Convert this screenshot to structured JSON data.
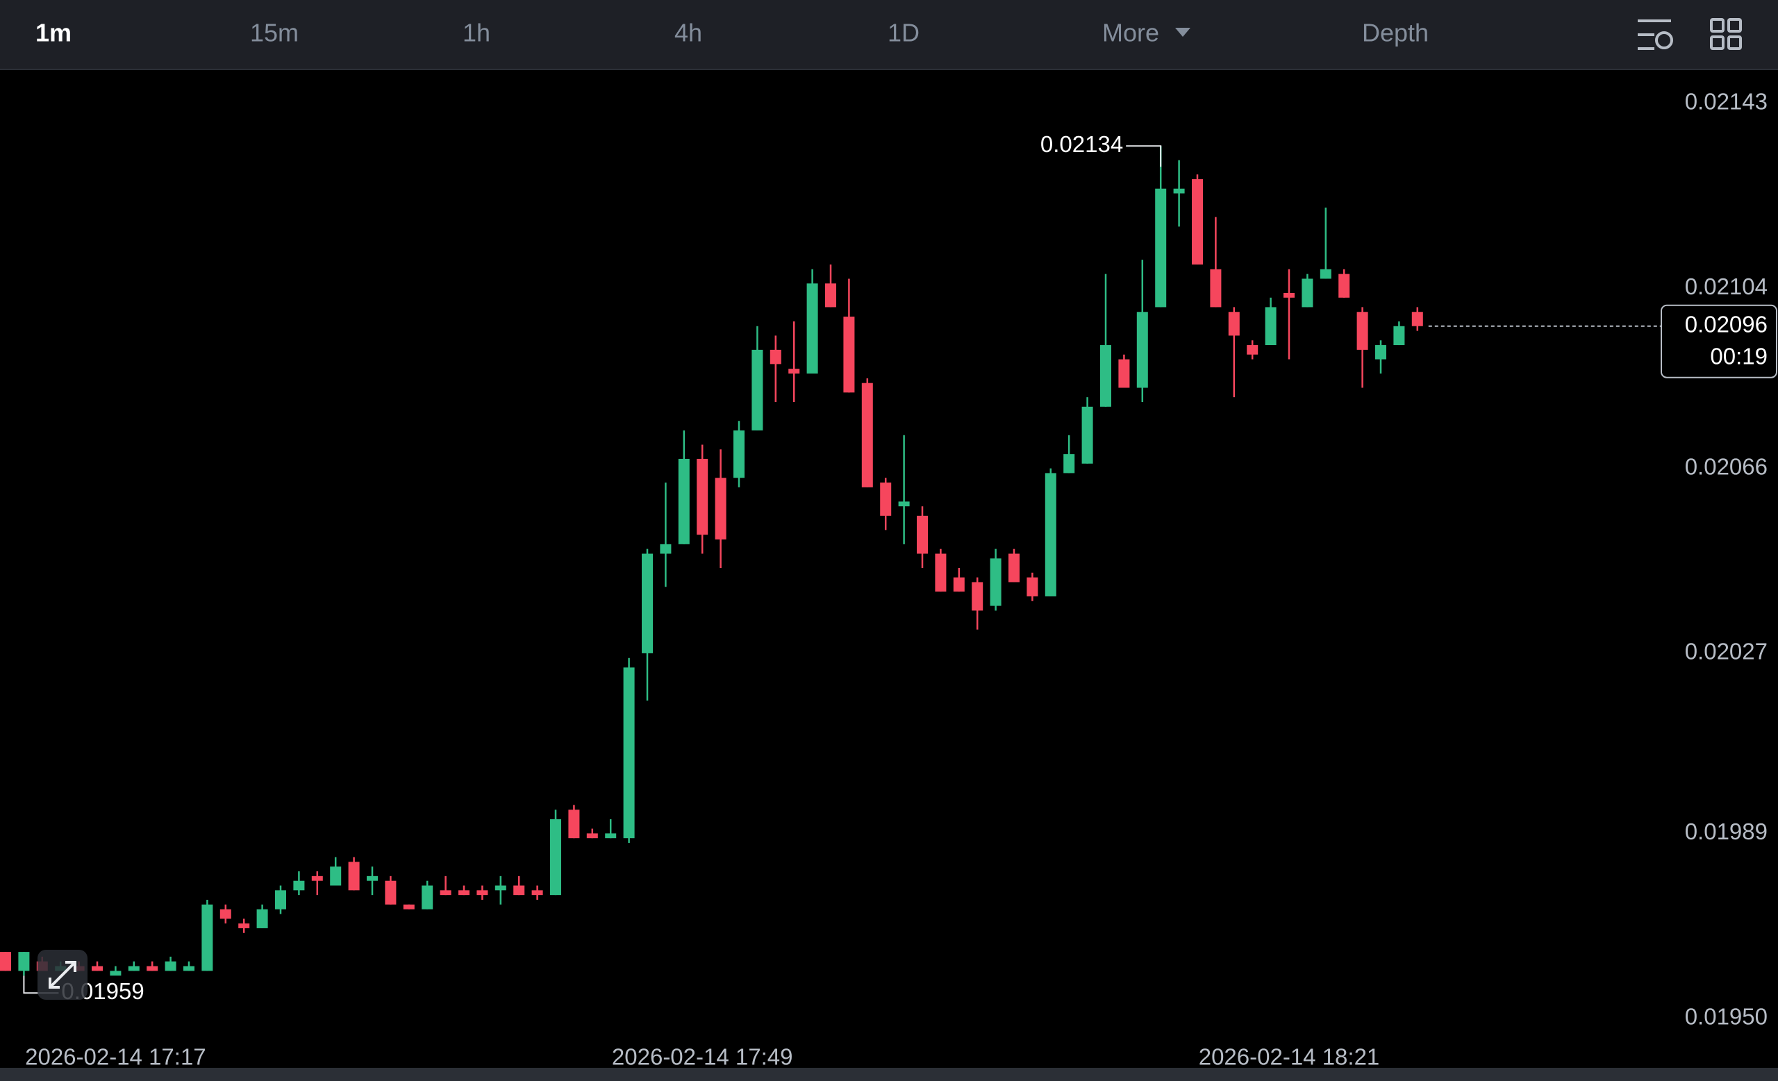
{
  "toolbar": {
    "tabs": [
      "1m",
      "15m",
      "1h",
      "4h",
      "1D",
      "More",
      "Depth"
    ],
    "active_tab": 0
  },
  "chart_data": {
    "type": "candlestick",
    "categories": [
      null,
      null,
      null,
      null,
      null,
      null,
      "2026-02-14 17:17",
      null,
      null,
      null,
      null,
      null,
      null,
      null,
      null,
      null,
      null,
      null,
      null,
      null,
      null,
      null,
      null,
      null,
      null,
      null,
      null,
      null,
      null,
      null,
      null,
      null,
      null,
      null,
      null,
      null,
      null,
      null,
      "2026-02-14 17:49",
      null,
      null,
      null,
      null,
      null,
      null,
      null,
      null,
      null,
      null,
      null,
      null,
      null,
      null,
      null,
      null,
      null,
      null,
      null,
      null,
      null,
      null,
      null,
      null,
      null,
      null,
      null,
      null,
      null,
      null,
      null,
      "2026-02-14 18:21",
      null,
      null,
      null,
      null,
      null,
      null,
      null
    ],
    "open": [
      0.01964,
      0.0196,
      0.01962,
      0.0196,
      0.01961,
      0.01961,
      0.01959,
      0.0196,
      0.01961,
      0.0196,
      0.0196,
      0.0196,
      0.01973,
      0.0197,
      0.01969,
      0.01973,
      0.01977,
      0.0198,
      0.01978,
      0.01983,
      0.01979,
      0.01979,
      0.01974,
      0.01973,
      0.01977,
      0.01977,
      0.01977,
      0.01977,
      0.01978,
      0.01977,
      0.01976,
      0.01994,
      0.01989,
      0.01988,
      0.01988,
      0.02027,
      0.02048,
      0.0205,
      0.02068,
      0.02064,
      0.02064,
      0.02074,
      0.02091,
      0.02087,
      0.02086,
      0.02105,
      0.02098,
      0.02084,
      0.02063,
      0.02058,
      0.02056,
      0.02048,
      0.02043,
      0.02042,
      0.02037,
      0.02048,
      0.02043,
      0.02039,
      0.02065,
      0.02067,
      0.02079,
      0.02089,
      0.02083,
      0.021,
      0.02124,
      0.02127,
      0.02108,
      0.02099,
      0.02092,
      0.02092,
      0.02103,
      0.021,
      0.02106,
      0.02107,
      0.02099,
      0.02089,
      0.02092,
      0.02099
    ],
    "high": [
      0.01964,
      0.01964,
      0.01963,
      0.01962,
      0.01962,
      0.01962,
      0.01961,
      0.01962,
      0.01962,
      0.01963,
      0.01962,
      0.01975,
      0.01974,
      0.01971,
      0.01974,
      0.01978,
      0.01981,
      0.01981,
      0.01984,
      0.01984,
      0.01982,
      0.0198,
      0.01974,
      0.01979,
      0.0198,
      0.01978,
      0.01978,
      0.0198,
      0.0198,
      0.01978,
      0.01994,
      0.01995,
      0.0199,
      0.01992,
      0.02026,
      0.02049,
      0.02063,
      0.02074,
      0.02071,
      0.0207,
      0.02076,
      0.02096,
      0.02094,
      0.02097,
      0.02108,
      0.02109,
      0.02106,
      0.02085,
      0.02064,
      0.02073,
      0.02058,
      0.02049,
      0.02045,
      0.02043,
      0.02049,
      0.02049,
      0.02044,
      0.02066,
      0.02073,
      0.02081,
      0.02107,
      0.0209,
      0.0211,
      0.02134,
      0.02131,
      0.02128,
      0.02119,
      0.021,
      0.02093,
      0.02102,
      0.02108,
      0.02107,
      0.02121,
      0.02108,
      0.021,
      0.02093,
      0.02097,
      0.021
    ],
    "low": [
      0.0196,
      0.01959,
      0.0196,
      0.0196,
      0.0196,
      0.0196,
      0.0196,
      0.0196,
      0.0196,
      0.0196,
      0.0196,
      0.0196,
      0.0197,
      0.01968,
      0.01969,
      0.01972,
      0.01976,
      0.01976,
      0.01978,
      0.01977,
      0.01976,
      0.01974,
      0.01973,
      0.01973,
      0.01976,
      0.01976,
      0.01975,
      0.01974,
      0.01976,
      0.01975,
      0.01976,
      0.01988,
      0.01988,
      0.01988,
      0.01987,
      0.02017,
      0.02041,
      0.0205,
      0.02048,
      0.02045,
      0.02062,
      0.02074,
      0.0208,
      0.0208,
      0.02086,
      0.021,
      0.02082,
      0.02062,
      0.02053,
      0.0205,
      0.02045,
      0.0204,
      0.0204,
      0.02032,
      0.02036,
      0.02042,
      0.02038,
      0.02039,
      0.02065,
      0.02067,
      0.02079,
      0.02083,
      0.0208,
      0.021,
      0.02117,
      0.02109,
      0.021,
      0.02081,
      0.02089,
      0.02092,
      0.02089,
      0.021,
      0.02106,
      0.02102,
      0.02083,
      0.02086,
      0.02092,
      0.02095
    ],
    "close": [
      0.0196,
      0.01964,
      0.0196,
      0.01961,
      0.0196,
      0.0196,
      0.0196,
      0.01961,
      0.0196,
      0.01962,
      0.01961,
      0.01974,
      0.01971,
      0.01969,
      0.01973,
      0.01977,
      0.01979,
      0.01979,
      0.01982,
      0.01977,
      0.0198,
      0.01974,
      0.01973,
      0.01978,
      0.01976,
      0.01976,
      0.01976,
      0.01978,
      0.01976,
      0.01976,
      0.01992,
      0.01988,
      0.01988,
      0.01989,
      0.02024,
      0.02048,
      0.0205,
      0.02068,
      0.02052,
      0.02051,
      0.02074,
      0.02091,
      0.02088,
      0.02086,
      0.02105,
      0.021,
      0.02082,
      0.02062,
      0.02056,
      0.02059,
      0.02048,
      0.0204,
      0.0204,
      0.02036,
      0.02047,
      0.02042,
      0.02039,
      0.02065,
      0.02069,
      0.02079,
      0.02092,
      0.02083,
      0.02099,
      0.02125,
      0.02125,
      0.02109,
      0.021,
      0.02094,
      0.0209,
      0.021,
      0.02102,
      0.02106,
      0.02108,
      0.02102,
      0.02091,
      0.02092,
      0.02096,
      0.02096
    ],
    "up_color": "#2ebd85",
    "down_color": "#f6465d",
    "ylim": [
      0.01946,
      0.0215
    ],
    "yticks": [
      {
        "value": 0.0195,
        "label": "0.01950"
      },
      0.01989,
      0.02027,
      0.02066,
      0.02104,
      0.02143
    ],
    "high_marker": 0.02134,
    "low_marker": 0.01959,
    "last_price": 0.02096,
    "countdown": "00:19"
  }
}
